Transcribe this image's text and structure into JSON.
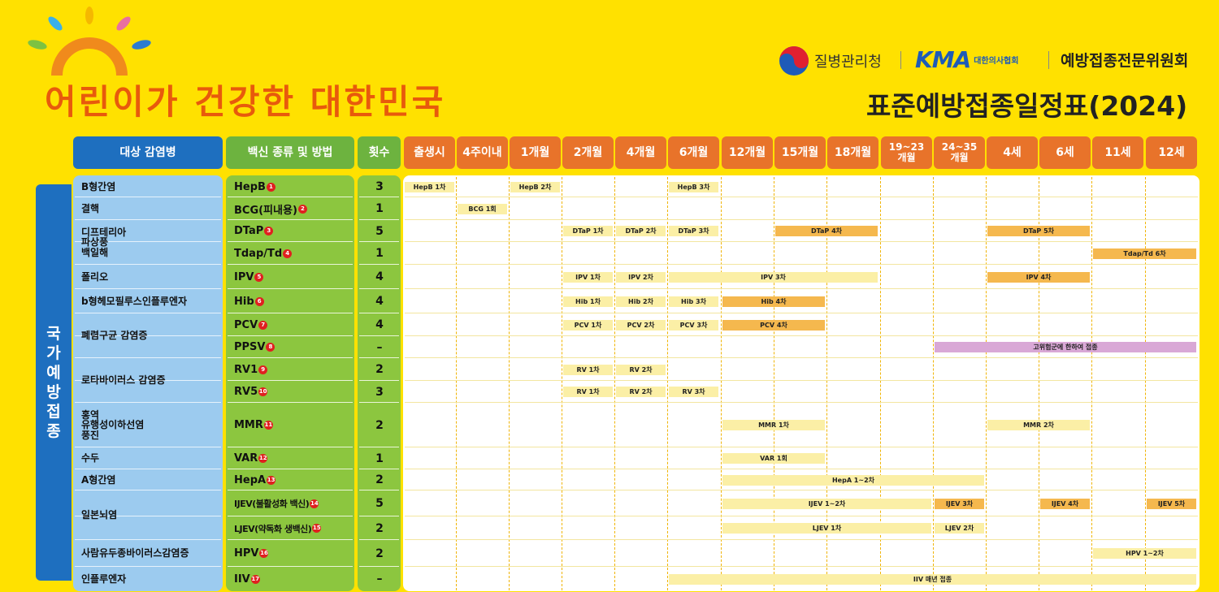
{
  "header": {
    "slogan": "어린이가 건강한 대한민국",
    "org1": "질병관리청",
    "org2_logo": "KMA",
    "org2_sub": "대한의사협회",
    "org3": "예방접종전문위원회",
    "title": "표준예방접종일정표(2024)"
  },
  "columns": {
    "disease": "대상 감염병",
    "vaccine": "백신 종류 및 방법",
    "count": "횟수",
    "ages": [
      "출생시",
      "4주이내",
      "1개월",
      "2개월",
      "4개월",
      "6개월",
      "12개월",
      "15개월",
      "18개월",
      "19~23\n개월",
      "24~35\n개월",
      "4세",
      "6세",
      "11세",
      "12세"
    ]
  },
  "side_label": "국가예방접종",
  "diseases": [
    "B형간염",
    "결핵",
    "디프테리아\n파상풍\n백일해",
    "폴리오",
    "b형헤모필루스인플루엔자",
    "폐렴구균 감염증",
    "로타바이러스 감염증",
    "홍역\n유행성이하선염\n풍진",
    "수두",
    "A형간염",
    "일본뇌염",
    "사람유두종바이러스감염증",
    "인플루엔자"
  ],
  "vaccines": [
    {
      "name": "HepB",
      "num": "1",
      "count": "3"
    },
    {
      "name": "BCG(피내용)",
      "num": "2",
      "count": "1"
    },
    {
      "name": "DTaP",
      "num": "3",
      "count": "5"
    },
    {
      "name": "Tdap/Td",
      "num": "4",
      "count": "1"
    },
    {
      "name": "IPV",
      "num": "5",
      "count": "4"
    },
    {
      "name": "Hib",
      "num": "6",
      "count": "4"
    },
    {
      "name": "PCV",
      "num": "7",
      "count": "4"
    },
    {
      "name": "PPSV",
      "num": "8",
      "count": "–"
    },
    {
      "name": "RV1",
      "num": "9",
      "count": "2"
    },
    {
      "name": "RV5",
      "num": "10",
      "count": "3"
    },
    {
      "name": "MMR",
      "num": "11",
      "count": "2"
    },
    {
      "name": "VAR",
      "num": "12",
      "count": "1"
    },
    {
      "name": "HepA",
      "num": "13",
      "count": "2"
    },
    {
      "name": "IJEV(불활성화 백신)",
      "num": "14",
      "count": "5"
    },
    {
      "name": "LJEV(약독화 생백신)",
      "num": "15",
      "count": "2"
    },
    {
      "name": "HPV",
      "num": "16",
      "count": "2"
    },
    {
      "name": "IIV",
      "num": "17",
      "count": "–"
    }
  ],
  "doses": [
    {
      "label": "HepB 1차",
      "row": 0,
      "c0": 0,
      "c1": 0,
      "style": "lt"
    },
    {
      "label": "HepB 2차",
      "row": 0,
      "c0": 2,
      "c1": 2,
      "style": "lt"
    },
    {
      "label": "HepB 3차",
      "row": 0,
      "c0": 5,
      "c1": 5,
      "style": "lt"
    },
    {
      "label": "BCG 1회",
      "row": 1,
      "c0": 1,
      "c1": 1,
      "style": "lt"
    },
    {
      "label": "DTaP 1차",
      "row": 2,
      "c0": 3,
      "c1": 3,
      "style": "lt"
    },
    {
      "label": "DTaP 2차",
      "row": 2,
      "c0": 4,
      "c1": 4,
      "style": "lt"
    },
    {
      "label": "DTaP 3차",
      "row": 2,
      "c0": 5,
      "c1": 5,
      "style": "lt"
    },
    {
      "label": "DTaP 4차",
      "row": 2,
      "c0": 7,
      "c1": 8,
      "style": "or"
    },
    {
      "label": "DTaP 5차",
      "row": 2,
      "c0": 11,
      "c1": 12,
      "style": "or"
    },
    {
      "label": "Tdap/Td 6차",
      "row": 3,
      "c0": 13,
      "c1": 14,
      "style": "or"
    },
    {
      "label": "IPV 1차",
      "row": 4,
      "c0": 3,
      "c1": 3,
      "style": "lt"
    },
    {
      "label": "IPV 2차",
      "row": 4,
      "c0": 4,
      "c1": 4,
      "style": "lt"
    },
    {
      "label": "IPV 3차",
      "row": 4,
      "c0": 5,
      "c1": 8,
      "style": "lt"
    },
    {
      "label": "IPV 4차",
      "row": 4,
      "c0": 11,
      "c1": 12,
      "style": "or"
    },
    {
      "label": "Hib 1차",
      "row": 5,
      "c0": 3,
      "c1": 3,
      "style": "lt"
    },
    {
      "label": "Hib 2차",
      "row": 5,
      "c0": 4,
      "c1": 4,
      "style": "lt"
    },
    {
      "label": "Hib 3차",
      "row": 5,
      "c0": 5,
      "c1": 5,
      "style": "lt"
    },
    {
      "label": "Hib 4차",
      "row": 5,
      "c0": 6,
      "c1": 7,
      "style": "or"
    },
    {
      "label": "PCV 1차",
      "row": 6,
      "c0": 3,
      "c1": 3,
      "style": "lt"
    },
    {
      "label": "PCV 2차",
      "row": 6,
      "c0": 4,
      "c1": 4,
      "style": "lt"
    },
    {
      "label": "PCV 3차",
      "row": 6,
      "c0": 5,
      "c1": 5,
      "style": "lt"
    },
    {
      "label": "PCV 4차",
      "row": 6,
      "c0": 6,
      "c1": 7,
      "style": "or"
    },
    {
      "label": "고위험군에 한하여 접종",
      "row": 7,
      "c0": 10,
      "c1": 14,
      "style": "pu"
    },
    {
      "label": "RV 1차",
      "row": 8,
      "c0": 3,
      "c1": 3,
      "style": "lt"
    },
    {
      "label": "RV 2차",
      "row": 8,
      "c0": 4,
      "c1": 4,
      "style": "lt"
    },
    {
      "label": "RV 1차",
      "row": 9,
      "c0": 3,
      "c1": 3,
      "style": "lt"
    },
    {
      "label": "RV 2차",
      "row": 9,
      "c0": 4,
      "c1": 4,
      "style": "lt"
    },
    {
      "label": "RV 3차",
      "row": 9,
      "c0": 5,
      "c1": 5,
      "style": "lt"
    },
    {
      "label": "MMR 1차",
      "row": 10,
      "c0": 6,
      "c1": 7,
      "style": "lt"
    },
    {
      "label": "MMR 2차",
      "row": 10,
      "c0": 11,
      "c1": 12,
      "style": "lt"
    },
    {
      "label": "VAR 1회",
      "row": 11,
      "c0": 6,
      "c1": 7,
      "style": "lt"
    },
    {
      "label": "HepA 1~2차",
      "row": 12,
      "c0": 6,
      "c1": 10,
      "style": "lt"
    },
    {
      "label": "IJEV 1~2차",
      "row": 13,
      "c0": 6,
      "c1": 9,
      "style": "lt"
    },
    {
      "label": "IJEV 3차",
      "row": 13,
      "c0": 10,
      "c1": 10,
      "style": "or"
    },
    {
      "label": "IJEV 4차",
      "row": 13,
      "c0": 12,
      "c1": 12,
      "style": "or"
    },
    {
      "label": "IJEV 5차",
      "row": 13,
      "c0": 14,
      "c1": 14,
      "style": "or"
    },
    {
      "label": "LJEV 1차",
      "row": 14,
      "c0": 6,
      "c1": 9,
      "style": "lt"
    },
    {
      "label": "LJEV 2차",
      "row": 14,
      "c0": 10,
      "c1": 10,
      "style": "lt"
    },
    {
      "label": "HPV 1~2차",
      "row": 15,
      "c0": 13,
      "c1": 14,
      "style": "lt"
    },
    {
      "label": "IIV 매년 접종",
      "row": 16,
      "c0": 5,
      "c1": 14,
      "style": "lt"
    }
  ],
  "colors": {
    "bg": "#FFE100",
    "blue": "#1E6FBF",
    "green": "#6DB33F",
    "orange": "#E8732A",
    "light_blue": "#9CCBEF",
    "light_green": "#8CC63F",
    "bar_light": "#FBEFA6",
    "bar_orange": "#F5B84E",
    "bar_purple": "#D9A8D6"
  }
}
